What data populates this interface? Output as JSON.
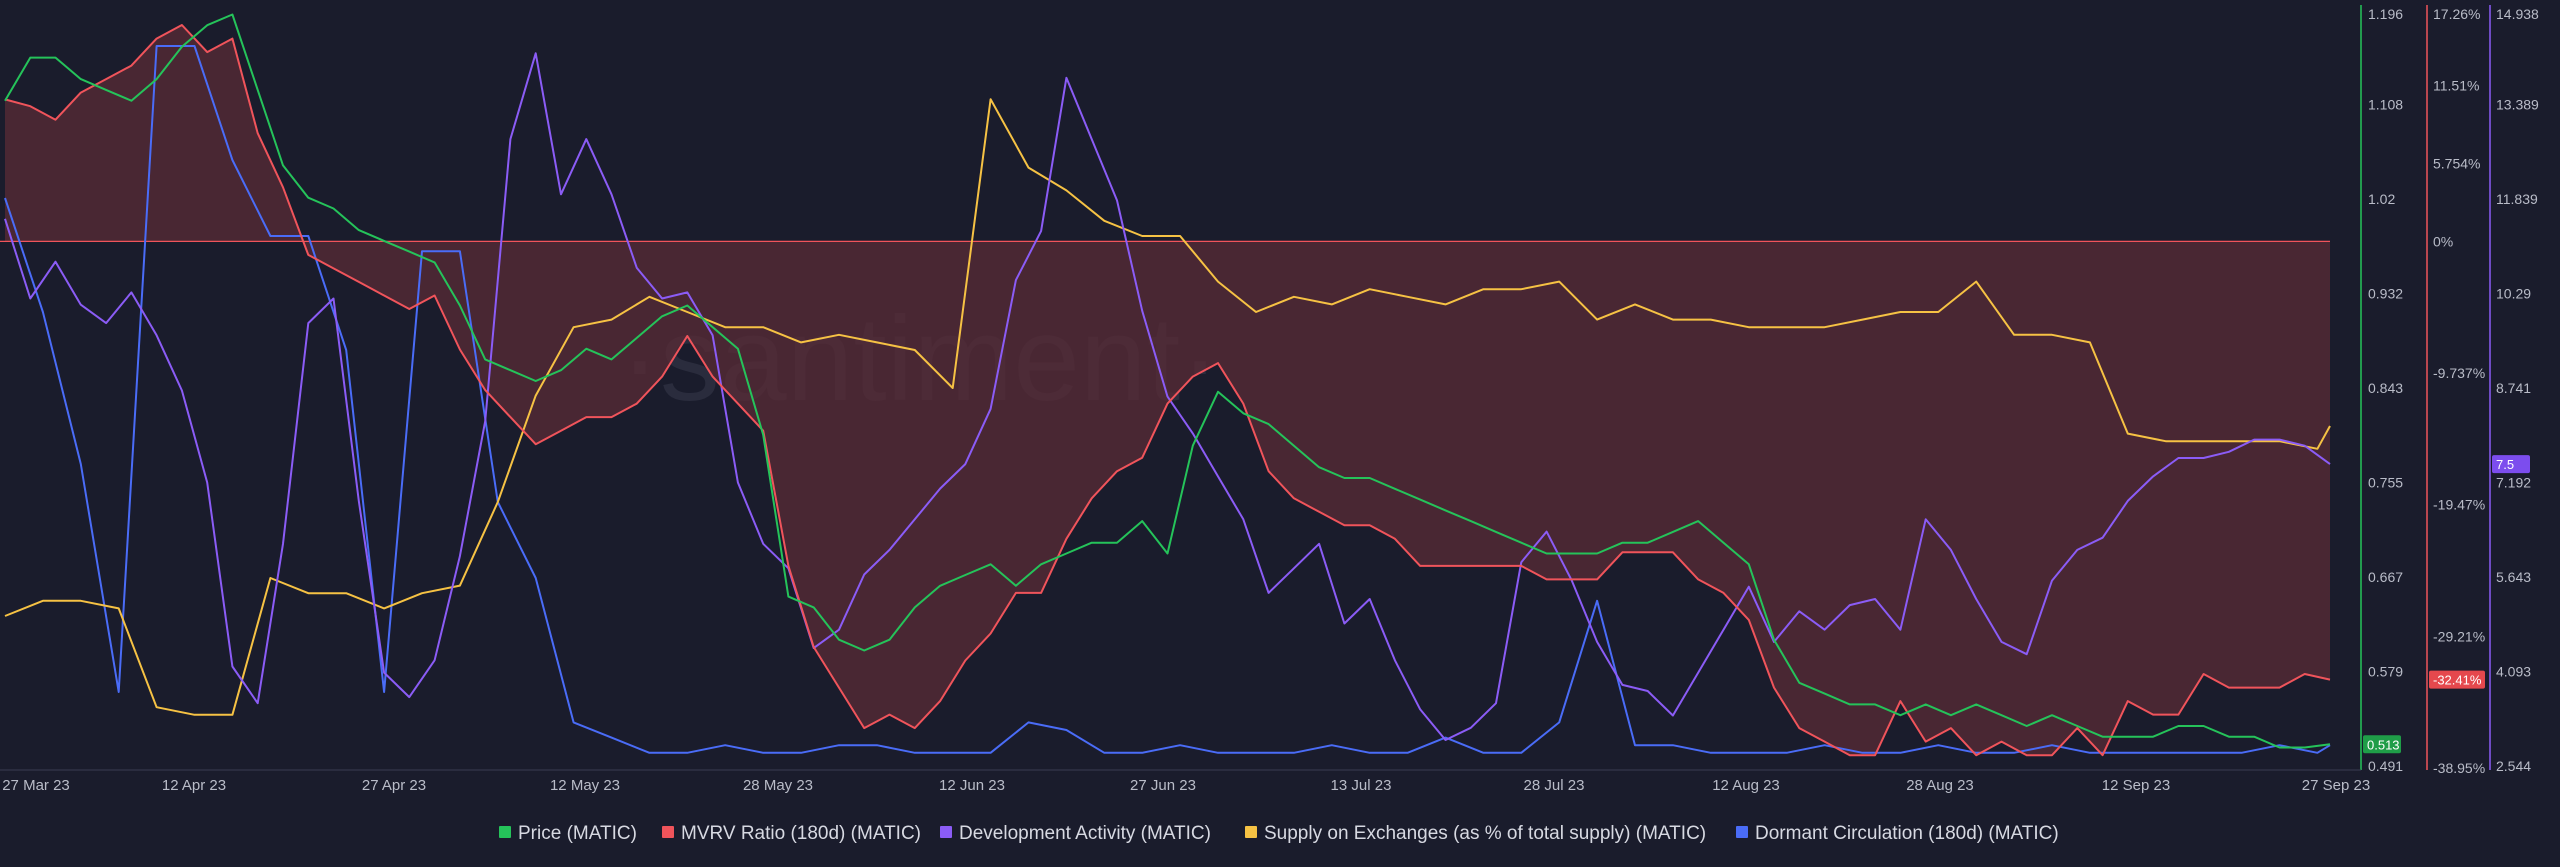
{
  "watermark": "·santiment·",
  "colors": {
    "background": "#1a1c2c",
    "price": "#25c35a",
    "mvrv": "#f0545b",
    "dev": "#8b5cf6",
    "supply": "#f6c244",
    "dormant": "#4a6cf7",
    "mvrv_fill": "#5a2b36"
  },
  "chart_data": {
    "type": "line",
    "x_ticks": [
      "27 Mar 23",
      "12 Apr 23",
      "27 Apr 23",
      "12 May 23",
      "28 May 23",
      "12 Jun 23",
      "27 Jun 23",
      "13 Jul 23",
      "28 Jul 23",
      "12 Aug 23",
      "28 Aug 23",
      "12 Sep 23",
      "27 Sep 23"
    ],
    "axes": {
      "price": {
        "ticks": [
          "1.196",
          "1.108",
          "1.02",
          "0.932",
          "0.843",
          "0.755",
          "0.667",
          "0.579",
          "0.491"
        ],
        "min": 0.491,
        "max": 1.196,
        "badge": "0.513"
      },
      "mvrv": {
        "ticks": [
          "17.26%",
          "11.51%",
          "5.754%",
          "0%",
          "-9.737%",
          "-19.47%",
          "-29.21%",
          "-38.95%"
        ],
        "tick_values": [
          17.26,
          11.51,
          5.754,
          0,
          -9.737,
          -19.47,
          -29.21,
          -38.95
        ],
        "min": -38.95,
        "max": 17.26,
        "badge": "-32.41%"
      },
      "dev": {
        "ticks": [
          "14.938",
          "13.389",
          "11.839",
          "10.29",
          "8.741",
          "7.192",
          "5.643",
          "4.093",
          "2.544"
        ],
        "min": 2.544,
        "max": 14.938,
        "badge": "7.5"
      }
    },
    "legend": [
      {
        "name": "Price (MATIC)",
        "key": "price"
      },
      {
        "name": "MVRV Ratio (180d) (MATIC)",
        "key": "mvrv"
      },
      {
        "name": "Development Activity (MATIC)",
        "key": "dev"
      },
      {
        "name": "Supply on Exchanges (as % of total supply) (MATIC)",
        "key": "supply"
      },
      {
        "name": "Dormant Circulation (180d) (MATIC)",
        "key": "dormant"
      }
    ],
    "series": [
      {
        "name": "Price (MATIC)",
        "key": "price",
        "axis": "price",
        "x": [
          0,
          2,
          4,
          6,
          8,
          10,
          12,
          14,
          16,
          18,
          20,
          22,
          24,
          26,
          28,
          30,
          32,
          34,
          36,
          38,
          40,
          42,
          44,
          46,
          48,
          50,
          52,
          54,
          56,
          58,
          60,
          62,
          64,
          66,
          68,
          70,
          72,
          74,
          76,
          78,
          80,
          82,
          84,
          86,
          88,
          90,
          92,
          94,
          96,
          98,
          100,
          102,
          104,
          106,
          108,
          110,
          112,
          114,
          116,
          118,
          120,
          122,
          124,
          126,
          128,
          130,
          132,
          134,
          136,
          138,
          140,
          142,
          144,
          146,
          148,
          150,
          152,
          154,
          156,
          158,
          160,
          162,
          164,
          166,
          168,
          170,
          172,
          174,
          176,
          178,
          180,
          182,
          184
        ],
        "values": [
          1.11,
          1.15,
          1.15,
          1.13,
          1.12,
          1.11,
          1.13,
          1.16,
          1.18,
          1.19,
          1.12,
          1.05,
          1.02,
          1.01,
          0.99,
          0.98,
          0.97,
          0.96,
          0.92,
          0.87,
          0.86,
          0.85,
          0.86,
          0.88,
          0.87,
          0.89,
          0.91,
          0.92,
          0.9,
          0.88,
          0.8,
          0.65,
          0.64,
          0.61,
          0.6,
          0.61,
          0.64,
          0.66,
          0.67,
          0.68,
          0.66,
          0.68,
          0.69,
          0.7,
          0.7,
          0.72,
          0.69,
          0.79,
          0.84,
          0.82,
          0.81,
          0.79,
          0.77,
          0.76,
          0.76,
          0.75,
          0.74,
          0.73,
          0.72,
          0.71,
          0.7,
          0.69,
          0.69,
          0.69,
          0.7,
          0.7,
          0.71,
          0.72,
          0.7,
          0.68,
          0.61,
          0.57,
          0.56,
          0.55,
          0.55,
          0.54,
          0.55,
          0.54,
          0.55,
          0.54,
          0.53,
          0.54,
          0.53,
          0.52,
          0.52,
          0.52,
          0.53,
          0.53,
          0.52,
          0.52,
          0.51,
          0.51,
          0.513
        ]
      },
      {
        "name": "MVRV Ratio (180d) (MATIC)",
        "key": "mvrv",
        "axis": "mvrv",
        "x": [
          0,
          2,
          4,
          6,
          8,
          10,
          12,
          14,
          16,
          18,
          20,
          22,
          24,
          26,
          28,
          30,
          32,
          34,
          36,
          38,
          40,
          42,
          44,
          46,
          48,
          50,
          52,
          54,
          56,
          58,
          60,
          62,
          64,
          66,
          68,
          70,
          72,
          74,
          76,
          78,
          80,
          82,
          84,
          86,
          88,
          90,
          92,
          94,
          96,
          98,
          100,
          102,
          104,
          106,
          108,
          110,
          112,
          114,
          116,
          118,
          120,
          122,
          124,
          126,
          128,
          130,
          132,
          134,
          136,
          138,
          140,
          142,
          144,
          146,
          148,
          150,
          152,
          154,
          156,
          158,
          160,
          162,
          164,
          166,
          168,
          170,
          172,
          174,
          176,
          178,
          180,
          182,
          184
        ],
        "values": [
          10.5,
          10,
          9,
          11,
          12,
          13,
          15,
          16,
          14,
          15,
          8,
          4,
          -1,
          -2,
          -3,
          -4,
          -5,
          -4,
          -8,
          -11,
          -13,
          -15,
          -14,
          -13,
          -13,
          -12,
          -10,
          -7,
          -10,
          -12,
          -14,
          -24,
          -30,
          -33,
          -36,
          -35,
          -36,
          -34,
          -31,
          -29,
          -26,
          -26,
          -22,
          -19,
          -17,
          -16,
          -12,
          -10,
          -9,
          -12,
          -17,
          -19,
          -20,
          -21,
          -21,
          -22,
          -24,
          -24,
          -24,
          -24,
          -24,
          -25,
          -25,
          -25,
          -23,
          -23,
          -23,
          -25,
          -26,
          -28,
          -33,
          -36,
          -37,
          -38,
          -38,
          -34,
          -37,
          -36,
          -38,
          -37,
          -38,
          -38,
          -36,
          -38,
          -34,
          -35,
          -35,
          -32,
          -33,
          -33,
          -33,
          -32,
          -32.41
        ]
      },
      {
        "name": "Development Activity (MATIC)",
        "key": "dev",
        "axis": "dev",
        "x": [
          0,
          2,
          4,
          6,
          8,
          10,
          12,
          14,
          16,
          18,
          20,
          22,
          24,
          26,
          28,
          30,
          32,
          34,
          36,
          38,
          40,
          42,
          44,
          46,
          48,
          50,
          52,
          54,
          56,
          58,
          60,
          62,
          64,
          66,
          68,
          70,
          72,
          74,
          76,
          78,
          80,
          82,
          84,
          86,
          88,
          90,
          92,
          94,
          96,
          98,
          100,
          102,
          104,
          106,
          108,
          110,
          112,
          114,
          116,
          118,
          120,
          122,
          124,
          126,
          128,
          130,
          132,
          134,
          136,
          138,
          140,
          142,
          144,
          146,
          148,
          150,
          152,
          154,
          156,
          158,
          160,
          162,
          164,
          166,
          168,
          170,
          172,
          174,
          176,
          178,
          180,
          182,
          184
        ],
        "values": [
          11.5,
          10.2,
          10.8,
          10.1,
          9.8,
          10.3,
          9.6,
          8.7,
          7.2,
          4.2,
          3.6,
          6.2,
          9.8,
          10.2,
          6.9,
          4.1,
          3.7,
          4.3,
          6.0,
          8.2,
          12.8,
          14.2,
          11.9,
          12.8,
          11.9,
          10.7,
          10.2,
          10.3,
          9.6,
          7.2,
          6.2,
          5.8,
          4.5,
          4.8,
          5.7,
          6.1,
          6.6,
          7.1,
          7.5,
          8.4,
          10.5,
          11.3,
          13.8,
          12.8,
          11.8,
          10.0,
          8.6,
          8.0,
          7.3,
          6.6,
          5.4,
          5.8,
          6.2,
          4.9,
          5.3,
          4.3,
          3.5,
          3.0,
          3.2,
          3.6,
          5.9,
          6.4,
          5.6,
          4.6,
          3.9,
          3.8,
          3.4,
          4.1,
          4.8,
          5.5,
          4.6,
          5.1,
          4.8,
          5.2,
          5.3,
          4.8,
          6.6,
          6.1,
          5.3,
          4.6,
          4.4,
          5.6,
          6.1,
          6.3,
          6.9,
          7.3,
          7.6,
          7.6,
          7.7,
          7.9,
          7.9,
          7.8,
          7.5
        ]
      },
      {
        "name": "Supply on Exchanges (as % of total supply) (MATIC)",
        "key": "supply",
        "axis": "own",
        "x": [
          0,
          3,
          6,
          9,
          12,
          15,
          18,
          21,
          24,
          27,
          30,
          33,
          36,
          39,
          42,
          45,
          48,
          51,
          54,
          57,
          60,
          63,
          66,
          69,
          72,
          75,
          78,
          81,
          84,
          87,
          90,
          93,
          96,
          99,
          102,
          105,
          108,
          111,
          114,
          117,
          120,
          123,
          126,
          129,
          132,
          135,
          138,
          141,
          144,
          147,
          150,
          153,
          156,
          159,
          162,
          165,
          168,
          171,
          174,
          177,
          180,
          183,
          184
        ],
        "values": [
          20,
          22,
          22,
          21,
          8,
          7,
          7,
          25,
          23,
          23,
          21,
          23,
          24,
          35,
          49,
          58,
          59,
          62,
          60,
          58,
          58,
          56,
          57,
          56,
          55,
          50,
          88,
          79,
          76,
          72,
          70,
          70,
          64,
          60,
          62,
          61,
          63,
          62,
          61,
          63,
          63,
          64,
          59,
          61,
          59,
          59,
          58,
          58,
          58,
          59,
          60,
          60,
          64,
          57,
          57,
          56,
          44,
          43,
          43,
          43,
          43,
          42,
          45
        ]
      },
      {
        "name": "Dormant Circulation (180d) (MATIC)",
        "key": "dormant",
        "axis": "own",
        "x": [
          0,
          3,
          6,
          9,
          12,
          15,
          18,
          21,
          24,
          27,
          30,
          33,
          36,
          39,
          42,
          45,
          48,
          51,
          54,
          57,
          60,
          63,
          66,
          69,
          72,
          75,
          78,
          81,
          84,
          87,
          90,
          93,
          96,
          99,
          102,
          105,
          108,
          111,
          114,
          117,
          120,
          123,
          126,
          129,
          132,
          135,
          138,
          141,
          144,
          147,
          150,
          153,
          156,
          159,
          162,
          165,
          168,
          171,
          174,
          177,
          180,
          183,
          184
        ],
        "values": [
          75,
          60,
          40,
          10,
          95,
          95,
          80,
          70,
          70,
          55,
          10,
          68,
          68,
          35,
          25,
          6,
          4,
          2,
          2,
          3,
          2,
          2,
          3,
          3,
          2,
          2,
          2,
          6,
          5,
          2,
          2,
          3,
          2,
          2,
          2,
          3,
          2,
          2,
          4,
          2,
          2,
          6,
          22,
          3,
          3,
          2,
          2,
          2,
          3,
          2,
          2,
          3,
          2,
          2,
          3,
          2,
          2,
          2,
          2,
          2,
          3,
          2,
          3
        ]
      }
    ]
  }
}
